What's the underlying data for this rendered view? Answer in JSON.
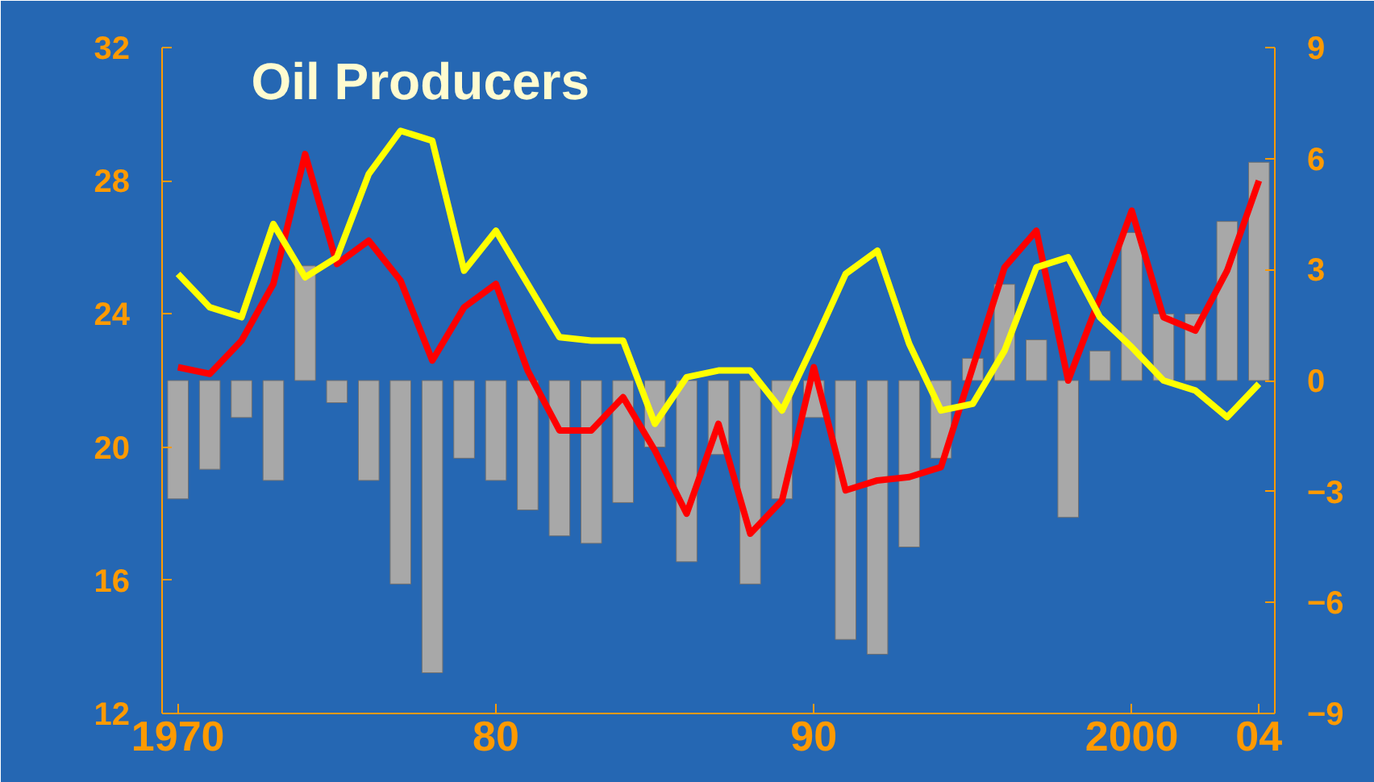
{
  "chart_data": {
    "type": "bar",
    "title": "Oil Producers",
    "x": [
      1970,
      1971,
      1972,
      1973,
      1974,
      1975,
      1976,
      1977,
      1978,
      1979,
      1980,
      1981,
      1982,
      1983,
      1984,
      1985,
      1986,
      1987,
      1988,
      1989,
      1990,
      1991,
      1992,
      1993,
      1994,
      1995,
      1996,
      1997,
      1998,
      1999,
      2000,
      2001,
      2002,
      2003,
      2004
    ],
    "series": [
      {
        "axis": "y2",
        "color": "#a8a8a8",
        "values": [
          -3.2,
          -2.4,
          -1.0,
          -2.7,
          3.1,
          -0.6,
          -2.7,
          -5.5,
          -7.9,
          -2.1,
          -2.7,
          -3.5,
          -4.2,
          -4.4,
          -3.3,
          -1.8,
          -4.9,
          -2.0,
          -5.5,
          -3.2,
          -1.0,
          -7.0,
          -7.4,
          -4.5,
          -2.1,
          0.6,
          2.6,
          1.1,
          -3.7,
          0.8,
          4.0,
          1.8,
          1.8,
          4.3,
          5.9
        ]
      },
      {
        "type": "line",
        "axis": "y",
        "color": "#ff0000",
        "values": [
          22.4,
          22.2,
          23.2,
          24.9,
          28.8,
          25.5,
          26.2,
          25.0,
          22.6,
          24.2,
          24.9,
          22.3,
          20.5,
          20.5,
          21.5,
          19.9,
          18.0,
          20.7,
          17.4,
          18.4,
          22.4,
          18.7,
          19.0,
          19.1,
          19.4,
          22.4,
          25.4,
          26.5,
          22.0,
          24.5,
          27.1,
          23.9,
          23.5,
          25.3,
          28.0
        ]
      },
      {
        "type": "line",
        "axis": "y",
        "color": "#ffff00",
        "values": [
          25.2,
          24.2,
          23.9,
          26.7,
          25.1,
          25.7,
          28.2,
          29.5,
          29.2,
          25.3,
          26.5,
          24.9,
          23.3,
          23.2,
          23.2,
          20.7,
          22.1,
          22.3,
          22.3,
          21.1,
          23.1,
          25.2,
          25.9,
          23.1,
          21.1,
          21.3,
          22.9,
          25.4,
          25.7,
          23.9,
          23.0,
          22.0,
          21.7,
          20.9,
          21.9
        ]
      }
    ],
    "xlim": [
      1969.5,
      2004.5
    ],
    "xticks": [
      1970,
      {
        "value": 1980,
        "label": "80"
      },
      {
        "value": 1990,
        "label": "90"
      },
      2000,
      {
        "value": 2004,
        "label": "04"
      }
    ],
    "ylim": [
      12,
      32
    ],
    "yticks": [
      12,
      16,
      20,
      24,
      28,
      32
    ],
    "y2lim": [
      -9,
      9
    ],
    "y2ticks": [
      -9,
      -6,
      -3,
      0,
      3,
      6,
      9
    ],
    "grid": false,
    "line_style": "solid",
    "marker": "none"
  }
}
